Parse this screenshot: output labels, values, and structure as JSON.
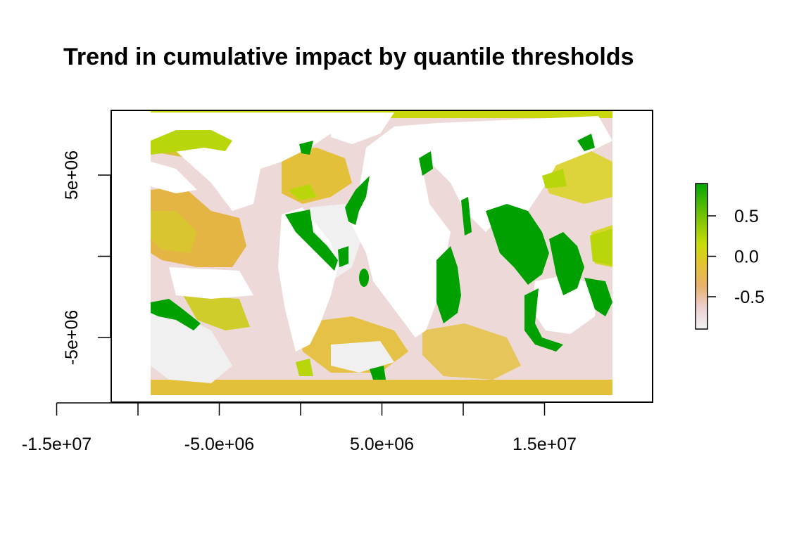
{
  "chart_data": {
    "type": "heatmap",
    "title": "Trend in cumulative impact by quantile thresholds",
    "xlabel": "",
    "ylabel": "",
    "x_ticks": [
      {
        "value": -15000000,
        "label": "-1.5e+07"
      },
      {
        "value": -10000000,
        "label": ""
      },
      {
        "value": -5000000,
        "label": "-5.0e+06"
      },
      {
        "value": 0,
        "label": ""
      },
      {
        "value": 5000000,
        "label": "5.0e+06"
      },
      {
        "value": 10000000,
        "label": ""
      },
      {
        "value": 15000000,
        "label": "1.5e+07"
      }
    ],
    "y_ticks": [
      {
        "value": 5000000,
        "label": "5e+06"
      },
      {
        "value": 0,
        "label": ""
      },
      {
        "value": -5000000,
        "label": "-5e+06"
      }
    ],
    "xlim": [
      -16700000,
      16700000
    ],
    "ylim": [
      -9000000,
      9000000
    ],
    "legend": {
      "position": "right",
      "range": [
        -0.9,
        0.9
      ],
      "ticks": [
        {
          "value": 0.5,
          "label": "0.5"
        },
        {
          "value": 0.0,
          "label": "0.0"
        },
        {
          "value": -0.5,
          "label": "-0.5"
        }
      ],
      "colors": [
        "#f2f2f2",
        "#eccfcf",
        "#e8b06a",
        "#e3c42f",
        "#c9dc0a",
        "#74c205",
        "#00a600"
      ]
    },
    "land_color": "#ffffff",
    "no_data_color": "#f0f0f0"
  }
}
